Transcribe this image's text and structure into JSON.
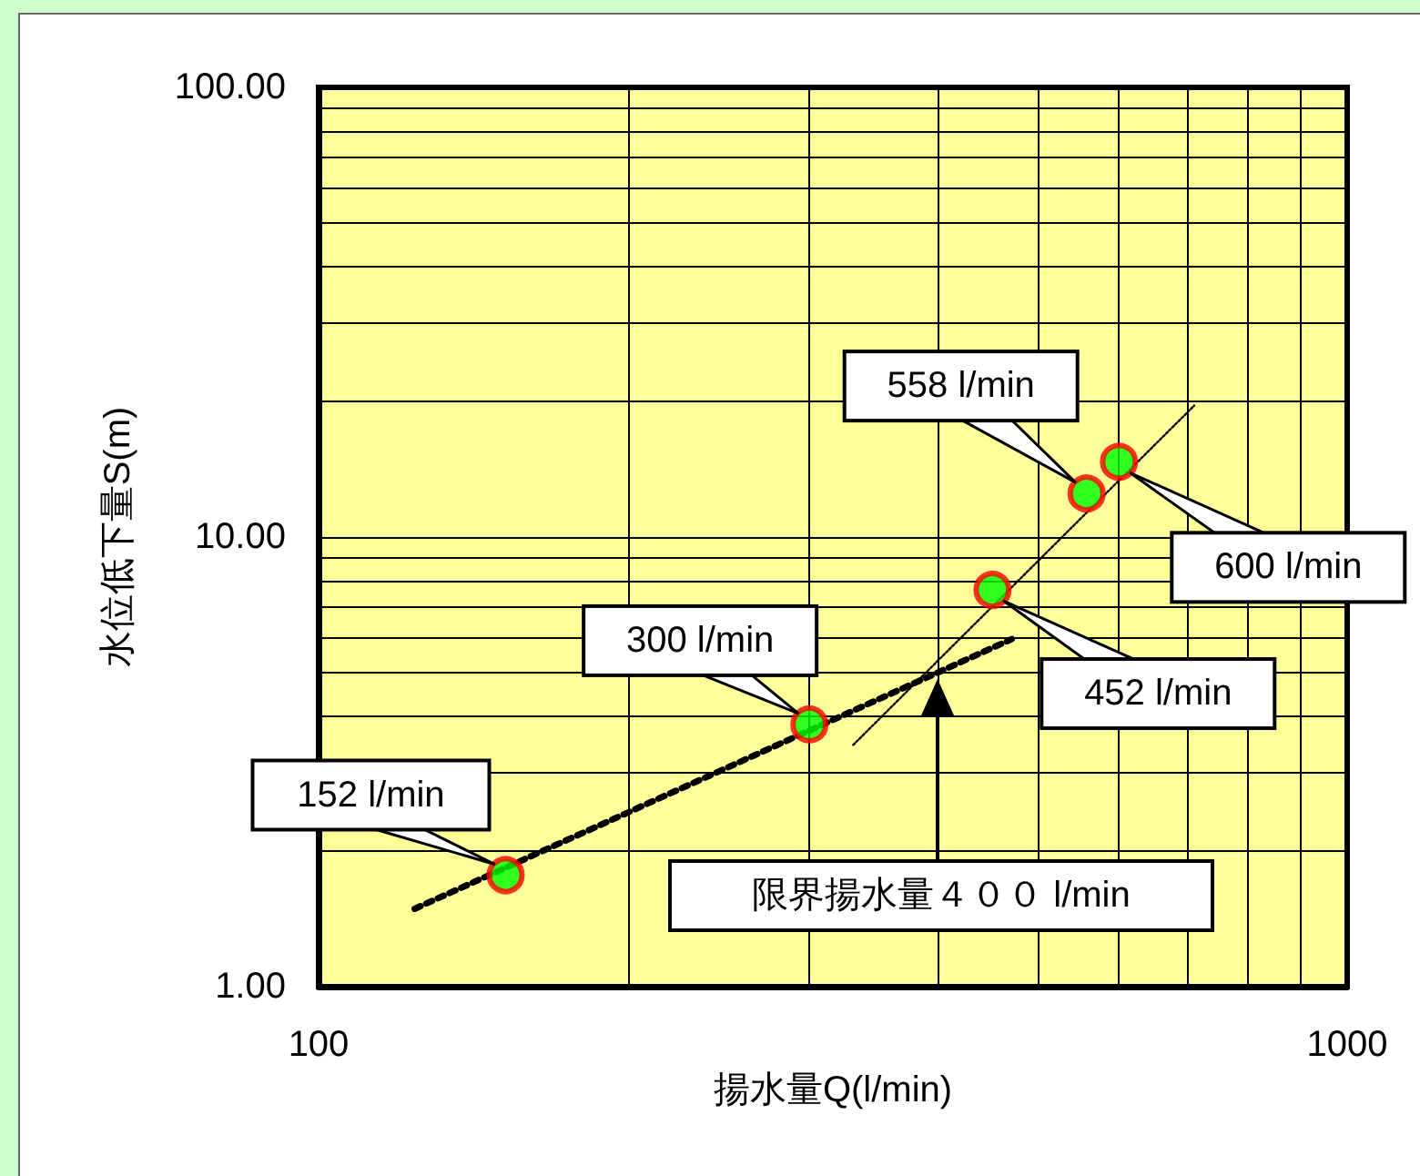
{
  "chart_data": {
    "type": "scatter",
    "xlabel": "揚水量Q(l/min)",
    "ylabel": "水位低下量S(m)",
    "log": "xy",
    "grid": true,
    "marker": "circle",
    "xlim": [
      100,
      1000
    ],
    "xticks": [
      100,
      1000
    ],
    "ylim": [
      1,
      100
    ],
    "yticks": [
      {
        "value": 1,
        "label": "1.00"
      },
      {
        "value": 10,
        "label": "10.00"
      },
      {
        "value": 100,
        "label": "100.00"
      }
    ],
    "series": [
      {
        "color": "#00ff00",
        "x": [
          152,
          300,
          452,
          558,
          600
        ],
        "values": [
          1.77,
          3.83,
          7.63,
          12.5,
          14.7
        ]
      },
      {
        "type": "line",
        "color": "#000000",
        "line_style": "dotted",
        "marker": "none",
        "x": [
          124,
          472
        ],
        "values": [
          1.49,
          5.93
        ]
      },
      {
        "type": "line",
        "color": "#000000",
        "line_style": "dotted",
        "marker": "none",
        "x": [
          331,
          710
        ],
        "values": [
          3.45,
          19.6
        ]
      }
    ],
    "annotations": [
      {
        "text": "152 l/min",
        "x": 152,
        "y": 1.77
      },
      {
        "text": "300 l/min",
        "x": 300,
        "y": 3.83
      },
      {
        "text": "452 l/min",
        "x": 452,
        "y": 7.63
      },
      {
        "text": "558 l/min",
        "x": 558,
        "y": 12.5
      },
      {
        "text": "600 l/min",
        "x": 600,
        "y": 14.7
      },
      "限界揚水量４００ l/min"
    ]
  }
}
